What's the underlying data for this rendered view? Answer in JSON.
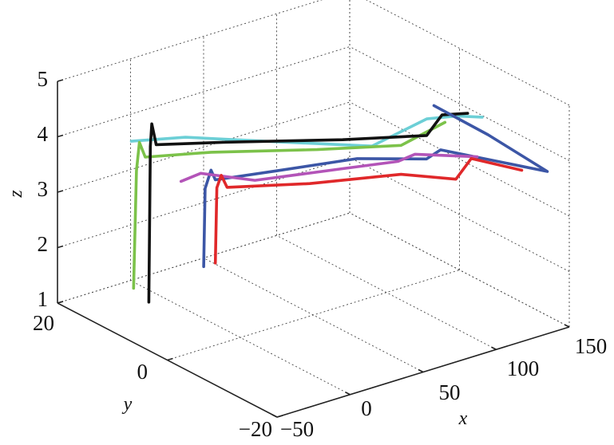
{
  "chart_data": {
    "type": "line",
    "projection": "3d",
    "xlabel": "x",
    "ylabel": "y",
    "zlabel": "z",
    "xlim": [
      -50,
      150
    ],
    "ylim": [
      -20,
      20
    ],
    "zlim": [
      1,
      5
    ],
    "x_ticks": [
      "−50",
      "0",
      "50",
      "100",
      "150"
    ],
    "y_ticks": [
      "−20",
      "0",
      "20"
    ],
    "z_ticks": [
      "1",
      "2",
      "3",
      "4",
      "5"
    ],
    "grid": true,
    "colors": {
      "cyan": "#6ccfd6",
      "green": "#7cc24a",
      "black": "#111111",
      "blue": "#3c56a6",
      "magenta": "#b354b8",
      "red": "#e0282a"
    },
    "series": [
      {
        "color": "cyan",
        "points": [
          [
            -22,
            14,
            4.0
          ],
          [
            0,
            10,
            4.1
          ],
          [
            40,
            4,
            4.0
          ],
          [
            75,
            -4,
            4.05
          ],
          [
            105,
            -6,
            4.4
          ],
          [
            118,
            -8,
            4.45
          ],
          [
            128,
            -10,
            4.45
          ]
        ]
      },
      {
        "color": "green",
        "points": [
          [
            -28,
            12,
            1.5
          ],
          [
            -26,
            12,
            3.6
          ],
          [
            -24,
            12,
            4.1
          ],
          [
            -20,
            12,
            3.8
          ],
          [
            10,
            8,
            3.85
          ],
          [
            60,
            2,
            3.8
          ],
          [
            95,
            -4,
            3.9
          ],
          [
            110,
            -8,
            4.4
          ]
        ]
      },
      {
        "color": "black",
        "points": [
          [
            -10,
            14,
            1.0
          ],
          [
            -9,
            14,
            3.8
          ],
          [
            -8,
            14,
            4.2
          ],
          [
            -5,
            14,
            3.8
          ],
          [
            20,
            8,
            3.95
          ],
          [
            70,
            0,
            4.0
          ],
          [
            105,
            -6,
            4.1
          ],
          [
            108,
            -8,
            4.55
          ],
          [
            118,
            -10,
            4.6
          ]
        ]
      },
      {
        "color": "blue",
        "points": [
          [
            20,
            12,
            1.5
          ],
          [
            21,
            12,
            2.9
          ],
          [
            25,
            12,
            3.2
          ],
          [
            28,
            12,
            3.0
          ],
          [
            55,
            8,
            3.15
          ],
          [
            95,
            4,
            3.25
          ],
          [
            120,
            -2,
            3.35
          ],
          [
            122,
            -4,
            3.6
          ],
          [
            150,
            -16,
            3.6
          ],
          [
            132,
            -10,
            4.1
          ],
          [
            110,
            -6,
            4.6
          ]
        ]
      },
      {
        "color": "magenta",
        "points": [
          [
            12,
            14,
            3.0
          ],
          [
            18,
            12,
            3.2
          ],
          [
            40,
            8,
            3.1
          ],
          [
            85,
            4,
            3.15
          ],
          [
            108,
            0,
            3.3
          ],
          [
            112,
            -2,
            3.5
          ],
          [
            132,
            -8,
            3.6
          ]
        ]
      },
      {
        "color": "red",
        "points": [
          [
            28,
            12,
            1.5
          ],
          [
            29,
            12,
            2.85
          ],
          [
            32,
            12,
            3.05
          ],
          [
            36,
            12,
            2.8
          ],
          [
            70,
            6,
            2.9
          ],
          [
            110,
            0,
            3.05
          ],
          [
            125,
            -6,
            3.15
          ],
          [
            128,
            -8,
            3.6
          ],
          [
            140,
            -14,
            3.6
          ]
        ]
      }
    ]
  }
}
